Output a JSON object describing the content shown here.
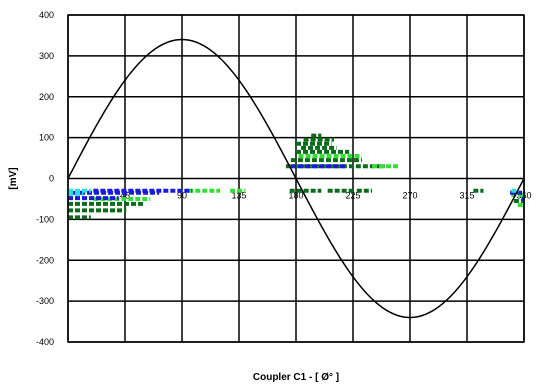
{
  "chart_data": {
    "type": "scatter",
    "xlabel": "Coupler C1 - [ Ø° ]",
    "ylabel": "[mV]",
    "xlim": [
      0,
      360
    ],
    "ylim": [
      -400,
      400
    ],
    "xticks": [
      0,
      45,
      90,
      135,
      180,
      225,
      270,
      315,
      360
    ],
    "xtick_labels": [
      "",
      "45",
      "90",
      "135",
      "180",
      "225",
      "270",
      "315",
      "360"
    ],
    "yticks": [
      400,
      300,
      200,
      100,
      0,
      -100,
      -200,
      -300,
      -400
    ],
    "ytick_labels": [
      "400",
      "300",
      "200",
      "100",
      "0",
      "-100",
      "-200",
      "-300",
      "-400"
    ],
    "grid": true,
    "legend": "none",
    "reference_sine": {
      "amplitude": 340,
      "color": "#000000"
    },
    "series": [
      {
        "color": "#0b6b1b",
        "segments": [
          [
            [
              0,
              -95
            ],
            [
              18,
              -95
            ]
          ],
          [
            [
              0,
              -78
            ],
            [
              46,
              -78
            ]
          ],
          [
            [
              0,
              -62
            ],
            [
              60,
              -62
            ]
          ],
          [
            [
              175,
              -30
            ],
            [
              200,
              -30
            ]
          ],
          [
            [
              205,
              -30
            ],
            [
              225,
              -30
            ]
          ],
          [
            [
              228,
              -30
            ],
            [
              240,
              -30
            ]
          ],
          [
            [
              320,
              -30
            ],
            [
              328,
              -30
            ]
          ],
          [
            [
              352,
              -55
            ],
            [
              360,
              -55
            ]
          ],
          [
            [
              192,
              105
            ],
            [
              200,
              105
            ]
          ],
          [
            [
              186,
              95
            ],
            [
              210,
              95
            ]
          ],
          [
            [
              180,
              85
            ],
            [
              208,
              85
            ]
          ],
          [
            [
              184,
              75
            ],
            [
              212,
              75
            ]
          ],
          [
            [
              180,
              65
            ],
            [
              222,
              65
            ]
          ],
          [
            [
              176,
              45
            ],
            [
              232,
              45
            ]
          ],
          [
            [
              172,
              30
            ],
            [
              250,
              30
            ]
          ]
        ]
      },
      {
        "color": "#33dd33",
        "segments": [
          [
            [
              20,
              -50
            ],
            [
              65,
              -50
            ]
          ],
          [
            [
              95,
              -30
            ],
            [
              120,
              -30
            ]
          ],
          [
            [
              128,
              -30
            ],
            [
              140,
              -30
            ]
          ],
          [
            [
              182,
              55
            ],
            [
              232,
              55
            ]
          ],
          [
            [
              240,
              30
            ],
            [
              262,
              30
            ]
          ],
          [
            [
              350,
              -40
            ],
            [
              360,
              -40
            ]
          ],
          [
            [
              355,
              -65
            ],
            [
              360,
              -65
            ]
          ]
        ]
      },
      {
        "color": "#1a1adc",
        "segments": [
          [
            [
              0,
              -48
            ],
            [
              40,
              -48
            ]
          ],
          [
            [
              20,
              -30
            ],
            [
              98,
              -30
            ]
          ],
          [
            [
              4,
              -35
            ],
            [
              72,
              -35
            ]
          ],
          [
            [
              176,
              30
            ],
            [
              220,
              30
            ]
          ],
          [
            [
              349,
              -35
            ],
            [
              360,
              -35
            ]
          ],
          [
            [
              358,
              -50
            ],
            [
              360,
              -50
            ]
          ]
        ]
      },
      {
        "color": "#33dddd",
        "segments": [
          [
            [
              0,
              -30
            ],
            [
              18,
              -30
            ]
          ],
          [
            [
              0,
              -38
            ],
            [
              12,
              -38
            ]
          ],
          [
            [
              350,
              -30
            ],
            [
              356,
              -30
            ]
          ]
        ]
      }
    ]
  }
}
